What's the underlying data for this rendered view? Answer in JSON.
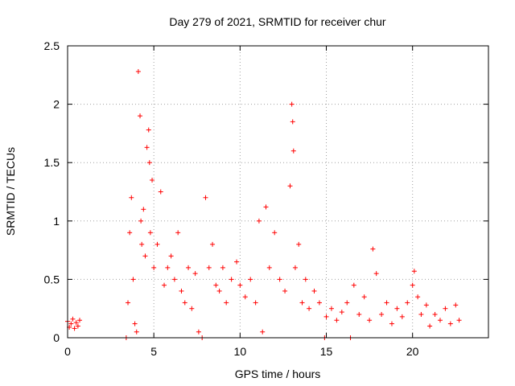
{
  "chart_data": {
    "type": "scatter",
    "title": "Day 279 of 2021, SRMTID for receiver chur",
    "xlabel": "GPS time / hours",
    "ylabel": "SRMTID / TECUs",
    "xlim": [
      0,
      24.4
    ],
    "ylim": [
      0,
      2.5
    ],
    "xticks": [
      0,
      5,
      10,
      15,
      20
    ],
    "xtick_labels": [
      "0",
      "5",
      "10",
      "15",
      "20"
    ],
    "yticks": [
      0,
      0.5,
      1,
      1.5,
      2,
      2.5
    ],
    "ytick_labels": [
      "0",
      "0.5",
      "1",
      "1.5",
      "2",
      "2.5"
    ],
    "grid": true,
    "marker": "+",
    "color": "#ff0000",
    "series": [
      {
        "name": "SRMTID",
        "points": [
          [
            0.0,
            0.14
          ],
          [
            0.1,
            0.09
          ],
          [
            0.2,
            0.12
          ],
          [
            0.3,
            0.16
          ],
          [
            0.4,
            0.08
          ],
          [
            0.5,
            0.13
          ],
          [
            0.6,
            0.1
          ],
          [
            0.7,
            0.15
          ],
          [
            3.4,
            0.0
          ],
          [
            3.5,
            0.3
          ],
          [
            3.6,
            0.9
          ],
          [
            3.7,
            1.2
          ],
          [
            3.8,
            0.5
          ],
          [
            3.9,
            0.12
          ],
          [
            4.0,
            0.05
          ],
          [
            4.1,
            2.28
          ],
          [
            4.2,
            1.9
          ],
          [
            4.25,
            1.0
          ],
          [
            4.3,
            0.8
          ],
          [
            4.4,
            1.1
          ],
          [
            4.5,
            0.7
          ],
          [
            4.6,
            1.63
          ],
          [
            4.7,
            1.78
          ],
          [
            4.75,
            1.5
          ],
          [
            4.8,
            0.9
          ],
          [
            4.9,
            1.35
          ],
          [
            5.0,
            0.6
          ],
          [
            5.2,
            0.8
          ],
          [
            5.4,
            1.25
          ],
          [
            5.6,
            0.45
          ],
          [
            5.8,
            0.6
          ],
          [
            6.0,
            0.7
          ],
          [
            6.2,
            0.5
          ],
          [
            6.4,
            0.9
          ],
          [
            6.6,
            0.4
          ],
          [
            6.8,
            0.3
          ],
          [
            7.0,
            0.6
          ],
          [
            7.2,
            0.25
          ],
          [
            7.4,
            0.55
          ],
          [
            7.6,
            0.05
          ],
          [
            7.8,
            0.0
          ],
          [
            8.0,
            1.2
          ],
          [
            8.2,
            0.6
          ],
          [
            8.4,
            0.8
          ],
          [
            8.6,
            0.45
          ],
          [
            8.8,
            0.4
          ],
          [
            9.0,
            0.6
          ],
          [
            9.2,
            0.3
          ],
          [
            9.5,
            0.5
          ],
          [
            9.8,
            0.65
          ],
          [
            10.0,
            0.45
          ],
          [
            10.3,
            0.35
          ],
          [
            10.6,
            0.5
          ],
          [
            10.9,
            0.3
          ],
          [
            11.1,
            1.0
          ],
          [
            11.3,
            0.05
          ],
          [
            11.5,
            1.12
          ],
          [
            11.7,
            0.6
          ],
          [
            12.0,
            0.9
          ],
          [
            12.3,
            0.5
          ],
          [
            12.6,
            0.4
          ],
          [
            12.9,
            1.3
          ],
          [
            13.0,
            2.0
          ],
          [
            13.05,
            1.85
          ],
          [
            13.1,
            1.6
          ],
          [
            13.2,
            0.6
          ],
          [
            13.4,
            0.8
          ],
          [
            13.6,
            0.3
          ],
          [
            13.8,
            0.5
          ],
          [
            14.0,
            0.25
          ],
          [
            14.3,
            0.4
          ],
          [
            14.6,
            0.3
          ],
          [
            14.9,
            0.0
          ],
          [
            15.0,
            0.18
          ],
          [
            15.3,
            0.25
          ],
          [
            15.6,
            0.15
          ],
          [
            15.9,
            0.22
          ],
          [
            16.2,
            0.3
          ],
          [
            16.4,
            0.0
          ],
          [
            16.6,
            0.45
          ],
          [
            16.9,
            0.2
          ],
          [
            17.2,
            0.35
          ],
          [
            17.5,
            0.15
          ],
          [
            17.7,
            0.76
          ],
          [
            17.9,
            0.55
          ],
          [
            18.2,
            0.2
          ],
          [
            18.5,
            0.3
          ],
          [
            18.8,
            0.12
          ],
          [
            19.1,
            0.25
          ],
          [
            19.4,
            0.18
          ],
          [
            19.7,
            0.3
          ],
          [
            20.0,
            0.45
          ],
          [
            20.1,
            0.57
          ],
          [
            20.3,
            0.35
          ],
          [
            20.5,
            0.2
          ],
          [
            20.8,
            0.28
          ],
          [
            21.0,
            0.1
          ],
          [
            21.3,
            0.2
          ],
          [
            21.6,
            0.15
          ],
          [
            21.9,
            0.25
          ],
          [
            22.2,
            0.12
          ],
          [
            22.5,
            0.28
          ],
          [
            22.7,
            0.15
          ]
        ]
      }
    ]
  }
}
